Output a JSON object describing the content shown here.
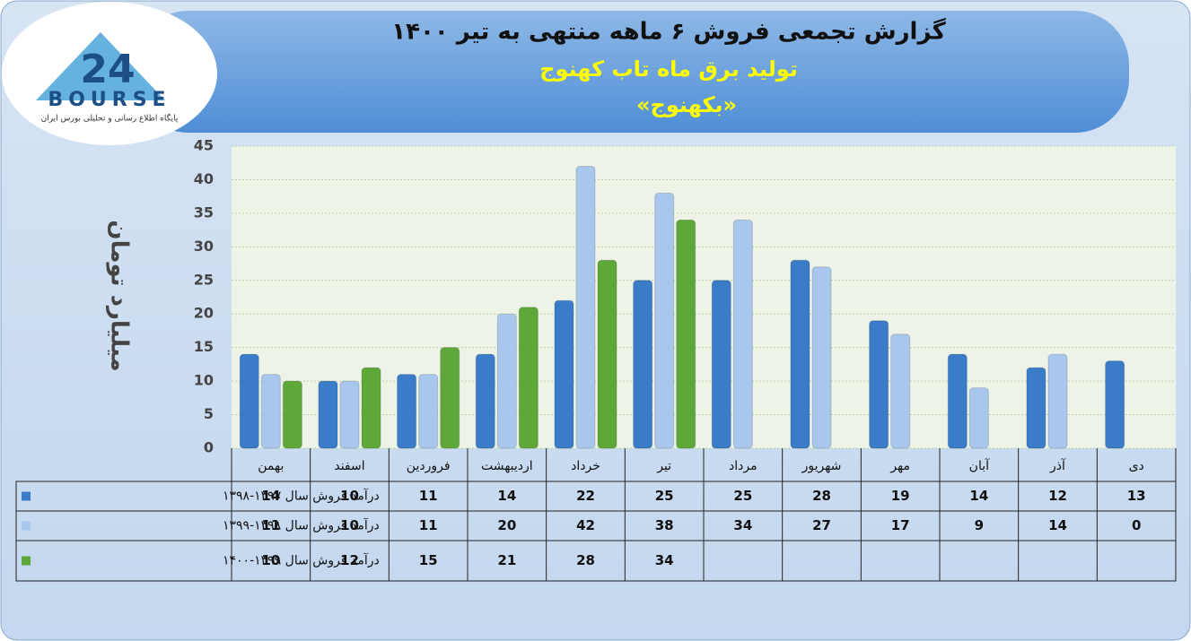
{
  "logo": {
    "name": "BOURSE",
    "number": "24",
    "tagline": "پایگاه اطلاع رسانی و تحلیلی بورس ایران"
  },
  "chart_data": {
    "type": "bar",
    "title": "گزارش تجمعی فروش ۶ ماهه منتهی به تیر ۱۴۰۰",
    "subtitle": "تولید برق ماه تاب کهنوج",
    "symbol": "«بکهنوج»",
    "y_label": "میلیارد تومان",
    "categories": [
      "بهمن",
      "اسفند",
      "فروردین",
      "اردیبهشت",
      "خرداد",
      "تیر",
      "مرداد",
      "شهریور",
      "مهر",
      "آبان",
      "آذر",
      "دی"
    ],
    "series": [
      {
        "name": "درآمد فروش سال ۱۳۹۷-۱۳۹۸",
        "color": "#3a7cc8",
        "values": [
          14,
          10,
          11,
          14,
          22,
          25,
          25,
          28,
          19,
          14,
          12,
          13
        ]
      },
      {
        "name": "درآمد فروش سال ۱۳۹۸-۱۳۹۹",
        "color": "#a9c7ec",
        "values": [
          11,
          10,
          11,
          20,
          42,
          38,
          34,
          27,
          17,
          9,
          14,
          0
        ]
      },
      {
        "name": "درآمد فروش سال ۱۳۹۹-۱۴۰۰",
        "color": "#5ea83a",
        "values": [
          10,
          12,
          15,
          21,
          28,
          34,
          null,
          null,
          null,
          null,
          null,
          null
        ]
      }
    ],
    "ylim": [
      0,
      45
    ],
    "yticks": [
      0,
      5,
      10,
      15,
      20,
      25,
      30,
      35,
      40,
      45
    ],
    "grid": true
  }
}
